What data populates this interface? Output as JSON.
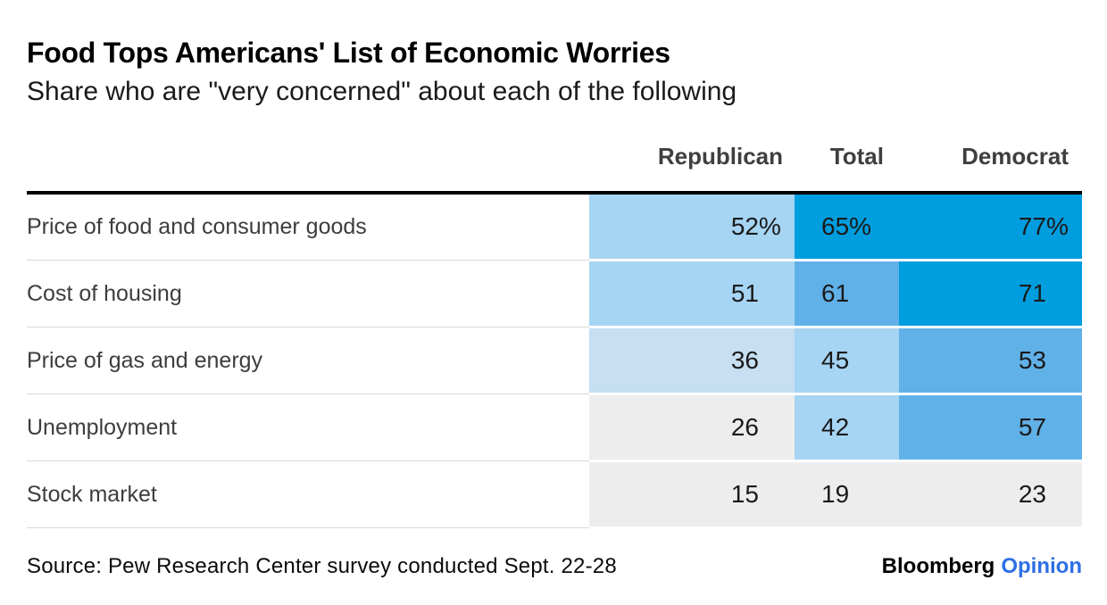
{
  "header": {
    "title": "Food Tops Americans' List of Economic Worries",
    "subtitle": "Share who are \"very concerned\" about each of the following"
  },
  "table": {
    "columns": [
      "Republican",
      "Total",
      "Democrat"
    ],
    "rows": [
      {
        "label": "Price of food and consumer goods",
        "cells": [
          {
            "value": "52",
            "suffix": "%",
            "tone": "light"
          },
          {
            "value": "65",
            "suffix": "%",
            "tone": "strong"
          },
          {
            "value": "77",
            "suffix": "%",
            "tone": "strong"
          }
        ]
      },
      {
        "label": "Cost of housing",
        "cells": [
          {
            "value": "51",
            "suffix": "",
            "tone": "light"
          },
          {
            "value": "61",
            "suffix": "",
            "tone": "medium"
          },
          {
            "value": "71",
            "suffix": "",
            "tone": "strong"
          }
        ]
      },
      {
        "label": "Price of gas and energy",
        "cells": [
          {
            "value": "36",
            "suffix": "",
            "tone": "xlight"
          },
          {
            "value": "45",
            "suffix": "",
            "tone": "light"
          },
          {
            "value": "53",
            "suffix": "",
            "tone": "medium"
          }
        ]
      },
      {
        "label": "Unemployment",
        "cells": [
          {
            "value": "26",
            "suffix": "",
            "tone": "gray"
          },
          {
            "value": "42",
            "suffix": "",
            "tone": "light"
          },
          {
            "value": "57",
            "suffix": "",
            "tone": "medium"
          }
        ]
      },
      {
        "label": "Stock market",
        "cells": [
          {
            "value": "15",
            "suffix": "",
            "tone": "gray"
          },
          {
            "value": "19",
            "suffix": "",
            "tone": "gray"
          },
          {
            "value": "23",
            "suffix": "",
            "tone": "gray"
          }
        ]
      }
    ]
  },
  "footer": {
    "source": "Source: Pew Research Center survey conducted Sept. 22-28",
    "logo_black": "Bloomberg",
    "logo_blue": "Opinion"
  },
  "colors": {
    "tones": {
      "strong": "#009ddf",
      "medium": "#61b1e9",
      "light": "#a6d4f3",
      "xlight": "#c6dff2",
      "gray": "#ededed"
    },
    "opinion_blue": "#2e6fe6",
    "header_rule": "#000000",
    "row_separator": "#d9d9d9"
  },
  "chart_data": {
    "type": "heatmap",
    "title": "Food Tops Americans' List of Economic Worries",
    "subtitle": "Share who are \"very concerned\" about each of the following",
    "categories": [
      "Price of food and consumer goods",
      "Cost of housing",
      "Price of gas and energy",
      "Unemployment",
      "Stock market"
    ],
    "columns": [
      "Republican",
      "Total",
      "Democrat"
    ],
    "series": [
      {
        "name": "Republican",
        "values": [
          52,
          51,
          36,
          26,
          15
        ]
      },
      {
        "name": "Total",
        "values": [
          65,
          61,
          45,
          42,
          19
        ]
      },
      {
        "name": "Democrat",
        "values": [
          77,
          71,
          53,
          57,
          23
        ]
      }
    ],
    "unit": "percent",
    "value_range": [
      0,
      100
    ],
    "legend_position": "none",
    "grid": "off",
    "source": "Source: Pew Research Center survey conducted Sept. 22-28"
  }
}
